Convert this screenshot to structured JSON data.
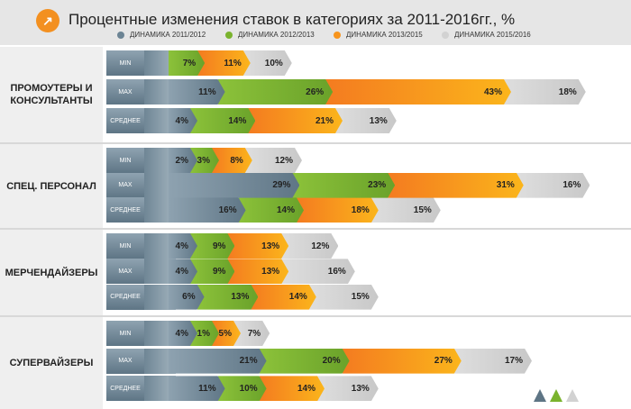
{
  "title": "Процентные изменения ставок в категориях за 2011-2016гг., %",
  "chart_data": {
    "type": "bar",
    "stacked": true,
    "orientation": "horizontal",
    "title": "Процентные изменения ставок в категориях за 2011-2016гг., %",
    "legend": [
      {
        "name": "ДИНАМИКА 2011/2012",
        "color": "#6c8494"
      },
      {
        "name": "ДИНАМИКА 2012/2013",
        "color": "#7ab32e"
      },
      {
        "name": "ДИНАМИКА 2013/2015",
        "color": "#f7941d"
      },
      {
        "name": "ДИНАМИКА 2015/2016",
        "color": "#d2d2d2"
      }
    ],
    "groups": [
      {
        "name": "ПРОМОУТЕРЫ И КОНСУЛЬТАНТЫ",
        "rows": [
          {
            "label": "MIN",
            "values": [
              null,
              7,
              11,
              10
            ]
          },
          {
            "label": "MAX",
            "values": [
              11,
              26,
              43,
              18
            ]
          },
          {
            "label": "СРЕДНЕЕ",
            "values": [
              4,
              14,
              21,
              13
            ]
          }
        ]
      },
      {
        "name": "СПЕЦ. ПЕРСОНАЛ",
        "rows": [
          {
            "label": "MIN",
            "values": [
              2,
              3,
              8,
              12
            ]
          },
          {
            "label": "MAX",
            "values": [
              29,
              23,
              31,
              16
            ]
          },
          {
            "label": "СРЕДНЕЕ",
            "values": [
              16,
              14,
              18,
              15
            ]
          }
        ]
      },
      {
        "name": "МЕРЧЕНДАЙЗЕРЫ",
        "rows": [
          {
            "label": "MIN",
            "values": [
              4,
              9,
              13,
              12
            ]
          },
          {
            "label": "MAX",
            "values": [
              4,
              9,
              13,
              16
            ]
          },
          {
            "label": "СРЕДНЕЕ",
            "values": [
              6,
              13,
              14,
              15
            ]
          }
        ]
      },
      {
        "name": "СУПЕРВАЙЗЕРЫ",
        "rows": [
          {
            "label": "MIN",
            "values": [
              4,
              1,
              5,
              7
            ]
          },
          {
            "label": "MAX",
            "values": [
              21,
              20,
              27,
              17
            ]
          },
          {
            "label": "СРЕДНЕЕ",
            "values": [
              11,
              10,
              14,
              13
            ]
          }
        ]
      }
    ]
  }
}
